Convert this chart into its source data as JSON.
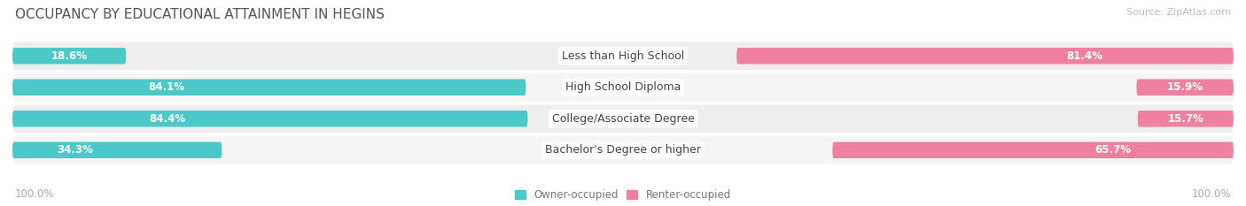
{
  "title": "OCCUPANCY BY EDUCATIONAL ATTAINMENT IN HEGINS",
  "source": "Source: ZipAtlas.com",
  "categories": [
    "Less than High School",
    "High School Diploma",
    "College/Associate Degree",
    "Bachelor's Degree or higher"
  ],
  "owner_values": [
    18.6,
    84.1,
    84.4,
    34.3
  ],
  "renter_values": [
    81.4,
    15.9,
    15.7,
    65.7
  ],
  "owner_color_light": "#7DD4D4",
  "owner_color_dark": "#2AACAC",
  "renter_color_light": "#F4A0B8",
  "renter_color_dark": "#EE6888",
  "owner_color": "#4DC8C8",
  "renter_color": "#F080A0",
  "bg_color_even": "#EEEEEE",
  "bg_color_odd": "#F5F5F5",
  "bar_height": 0.52,
  "legend_owner": "Owner-occupied",
  "legend_renter": "Renter-occupied",
  "x_left_label": "100.0%",
  "x_right_label": "100.0%",
  "title_fontsize": 11,
  "source_fontsize": 8,
  "label_fontsize": 9,
  "value_fontsize": 8.5,
  "tick_fontsize": 8.5,
  "total_width": 100
}
